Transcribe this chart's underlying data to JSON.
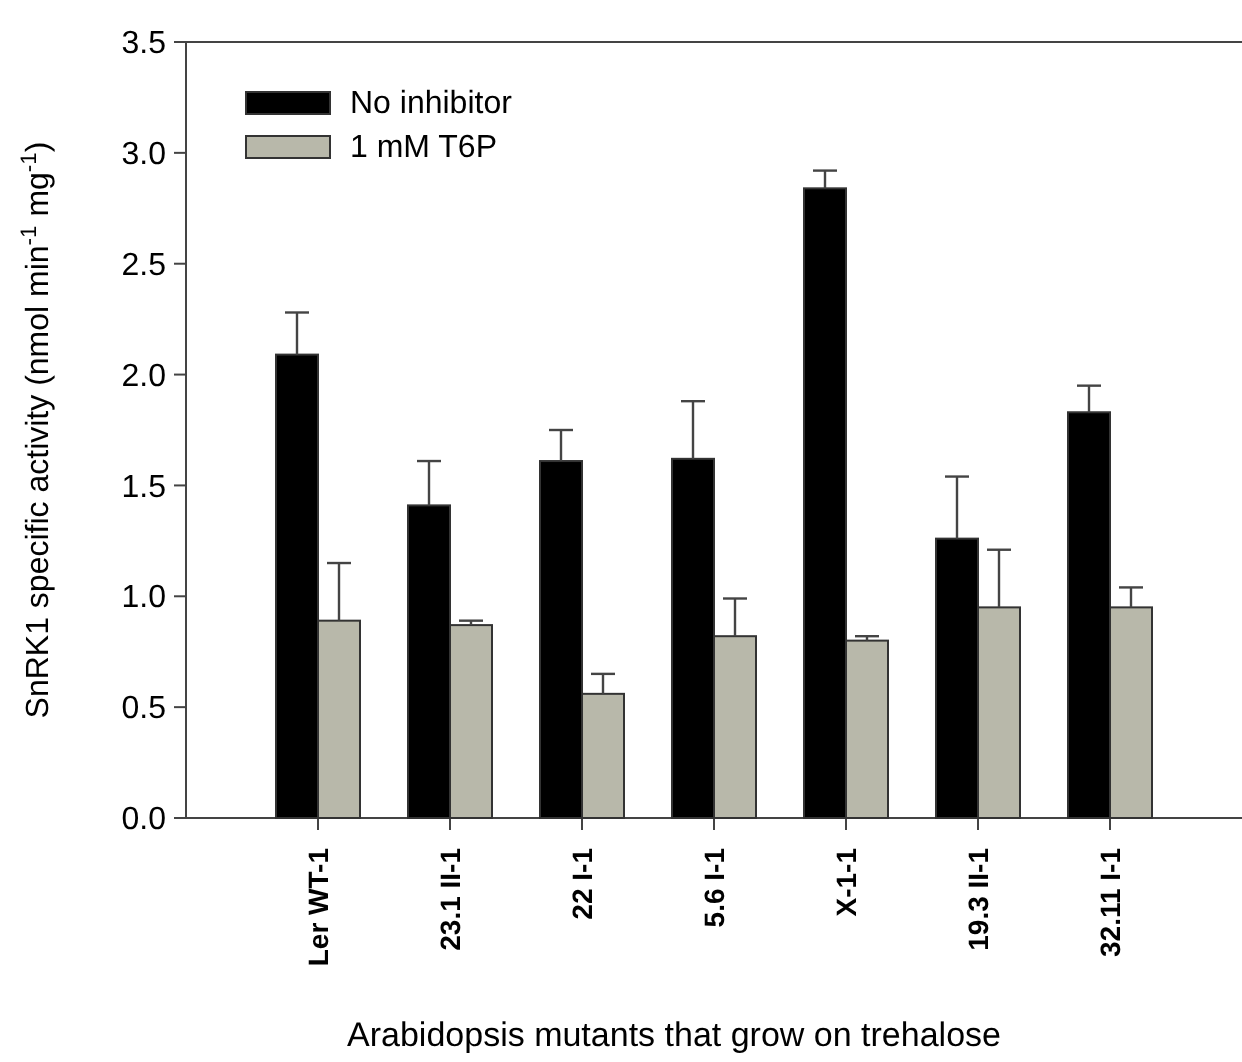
{
  "chart_data": {
    "type": "bar",
    "xlabel": "Arabidopsis mutants that grow on trehalose",
    "ylabel": "SnRK1 specific activity (nmol min$^{-1}$ mg$^{-1}$)",
    "categories": [
      "Ler WT-1",
      "23.1 II-1",
      "22 I-1",
      "5.6 I-1",
      "X-1-1",
      "19.3 II-1",
      "32.11 I-1"
    ],
    "series": [
      {
        "name": "No inhibitor",
        "color": "#000000",
        "values": [
          2.09,
          1.41,
          1.61,
          1.62,
          2.84,
          1.26,
          1.83
        ],
        "errors": [
          [
            2.09,
            2.28
          ],
          [
            1.41,
            1.61
          ],
          [
            1.61,
            1.75
          ],
          [
            1.62,
            1.88
          ],
          [
            2.84,
            2.92
          ],
          [
            1.26,
            1.54
          ],
          [
            1.83,
            1.95
          ]
        ]
      },
      {
        "name": "1 mM T6P",
        "color": "#b8b8aa",
        "values": [
          0.89,
          0.87,
          0.56,
          0.82,
          0.8,
          0.95,
          0.95
        ],
        "errors": [
          [
            0.89,
            1.15
          ],
          [
            0.87,
            0.89
          ],
          [
            0.56,
            0.65
          ],
          [
            0.82,
            0.99
          ],
          [
            0.8,
            0.82
          ],
          [
            0.95,
            1.21
          ],
          [
            0.95,
            1.04
          ]
        ]
      }
    ],
    "ylim": [
      0,
      3.5
    ],
    "yticks": [
      {
        "value": 0,
        "label": "0.0"
      },
      0.5,
      {
        "value": 1,
        "label": "1.0"
      },
      1.5,
      {
        "value": 2,
        "label": "2.0"
      },
      2.5,
      {
        "value": 3,
        "label": "3.0"
      },
      3.5
    ],
    "legend": "top left"
  }
}
